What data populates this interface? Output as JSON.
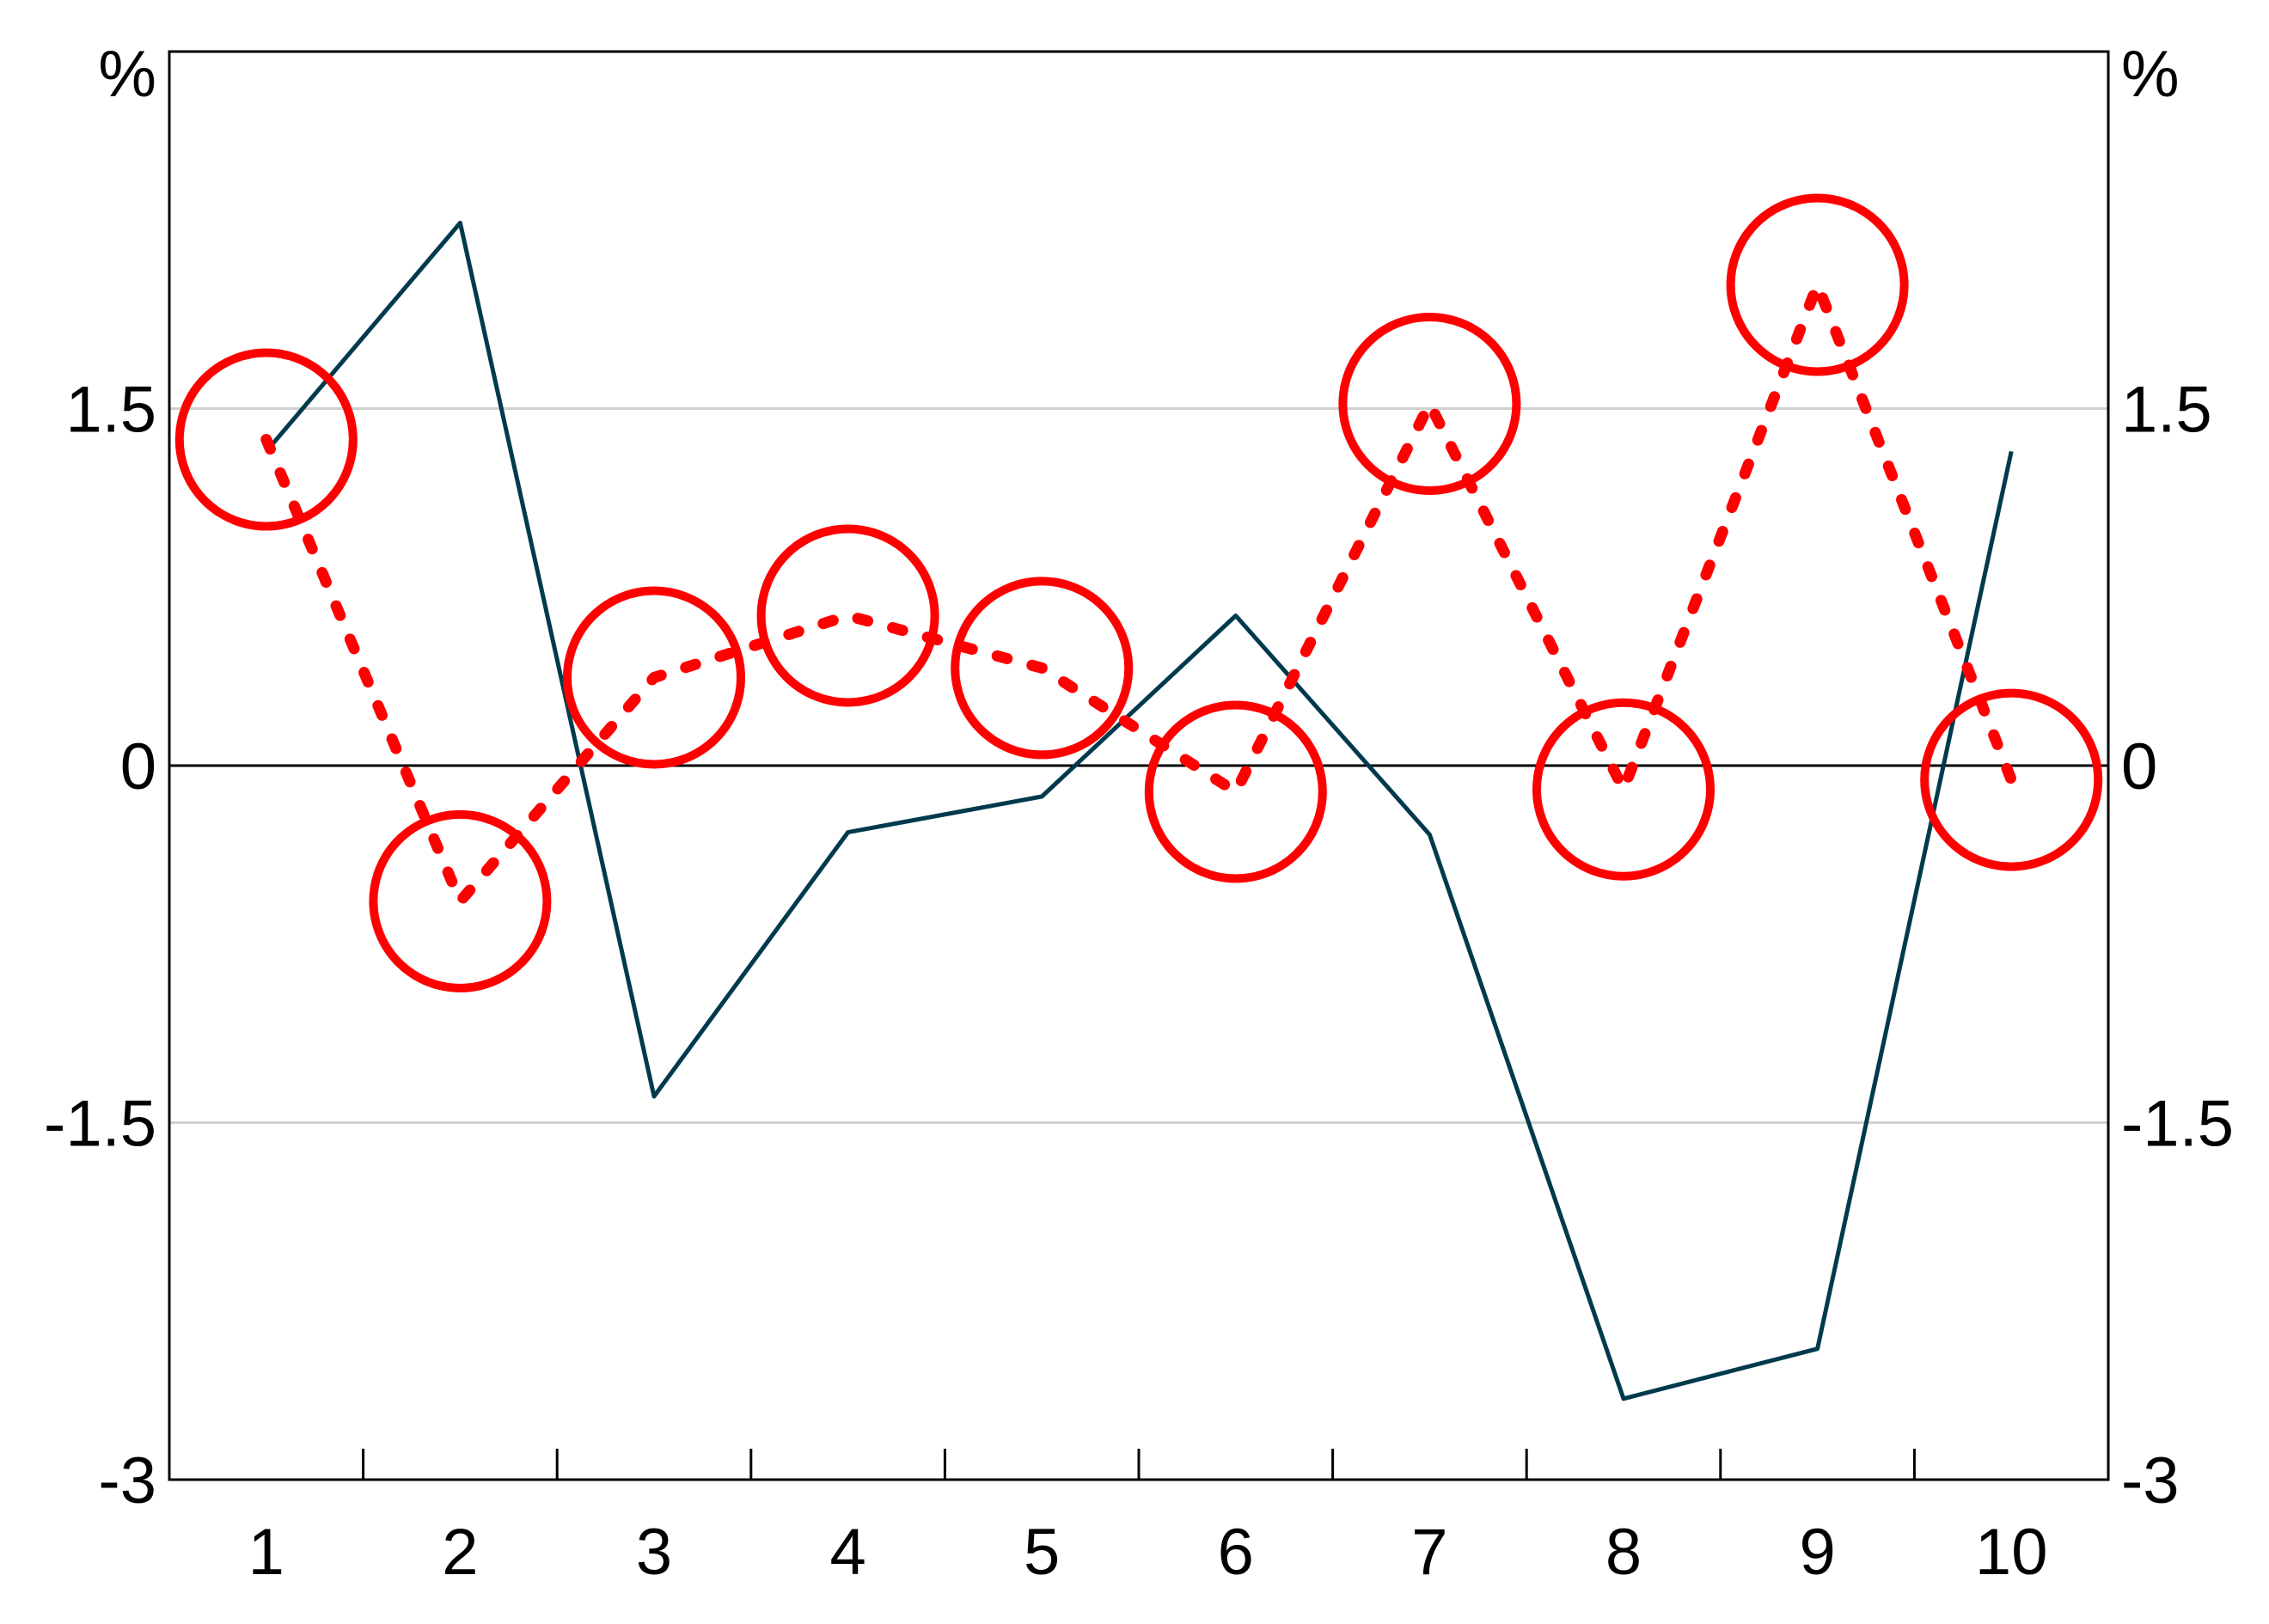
{
  "chart_data": {
    "type": "line",
    "unit_left": "%",
    "unit_right": "%",
    "categories": [
      "1",
      "2",
      "3",
      "4",
      "5",
      "6",
      "7",
      "8",
      "9",
      "10"
    ],
    "ylim": [
      -3,
      3
    ],
    "yticks": [
      "1.5",
      "0",
      "-1.5",
      "-3"
    ],
    "yticks_right": [
      "1.5",
      "0",
      "-1.5",
      "-3"
    ],
    "grid": true,
    "series": [
      {
        "style": "solid",
        "color": "#003a4d",
        "values": [
          1.32,
          2.28,
          -1.39,
          -0.28,
          -0.13,
          0.63,
          -0.29,
          -2.66,
          -2.45,
          1.32
        ]
      },
      {
        "style": "dotted",
        "color": "#ff0000",
        "marker": "circle",
        "values": [
          1.37,
          -0.57,
          0.37,
          0.63,
          0.41,
          -0.11,
          1.52,
          -0.1,
          2.02,
          -0.06
        ]
      }
    ]
  }
}
